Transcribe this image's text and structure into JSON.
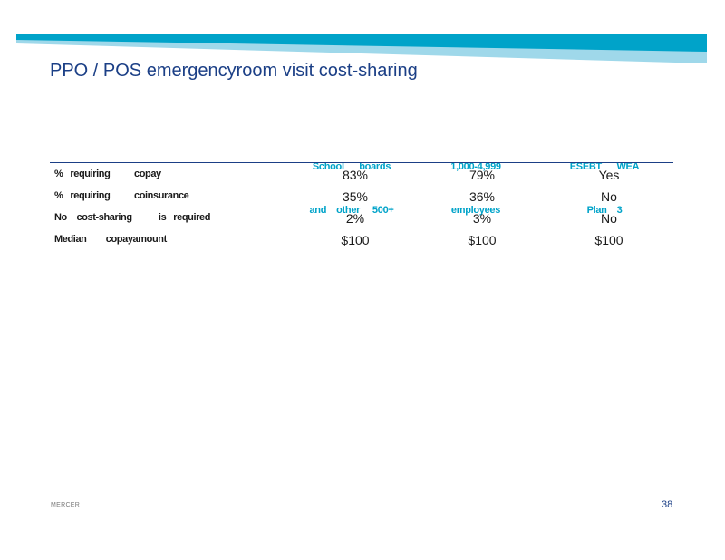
{
  "slide": {
    "title": "PPO / POS emergencyroom visit cost-sharing",
    "footer_brand": "MERCER",
    "page_number": "38"
  },
  "table": {
    "columns": [
      {
        "line1": "School      boards",
        "line2": "and    other     500+"
      },
      {
        "line1": "1,000-4,999",
        "line2": "employees"
      },
      {
        "line1": "ESEBT      WEA",
        "line2": "Plan    3"
      }
    ],
    "rows": [
      {
        "label": "%   requiring          copay",
        "values": [
          "83%",
          "79%",
          "Yes"
        ]
      },
      {
        "label": "%   requiring          coinsurance",
        "values": [
          "35%",
          "36%",
          "No"
        ]
      },
      {
        "label": "No    cost-sharing           is   required",
        "values": [
          "2%",
          "3%",
          "No"
        ]
      },
      {
        "label": "Median        copayamount",
        "values": [
          "$100",
          "$100",
          "$100"
        ]
      }
    ]
  },
  "colors": {
    "title": "#1b3f86",
    "header_text": "#00a3c9",
    "banner_dark": "#00a3c9",
    "banner_light": "#9fd8ea"
  }
}
